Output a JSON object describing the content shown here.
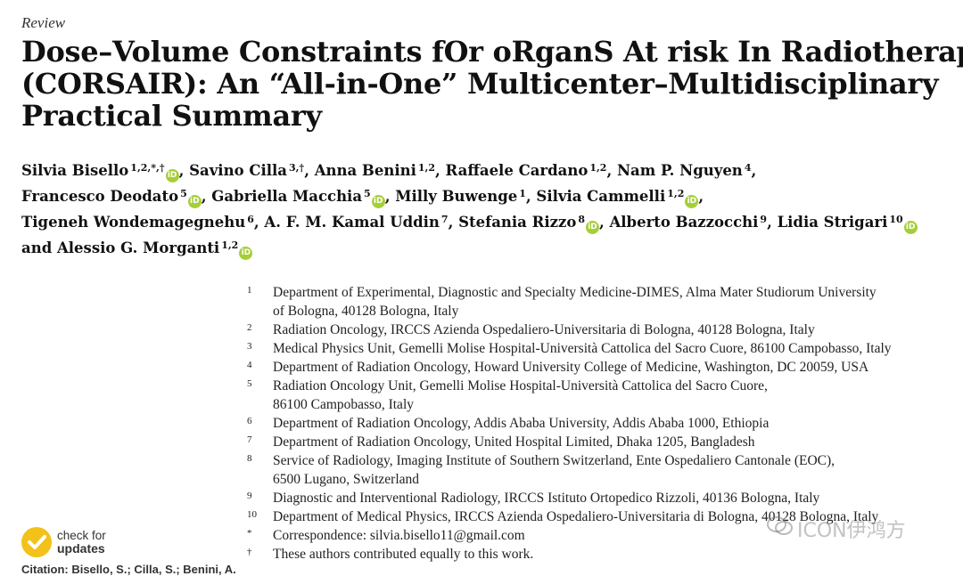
{
  "article_type": "Review",
  "title_lines": [
    "Dose–Volume Constraints fOr oRganS At risk In Radiotherapy",
    "(CORSAIR): An “All-in-One” Multicenter–Multidisciplinary",
    "Practical Summary"
  ],
  "authors": [
    [
      {
        "name": "Silvia Bisello",
        "sup": "1,2,*,†",
        "orcid": true,
        "sep": ", "
      },
      {
        "name": "Savino Cilla",
        "sup": "3,†",
        "orcid": false,
        "sep": ", "
      },
      {
        "name": "Anna Benini",
        "sup": "1,2",
        "orcid": false,
        "sep": ", "
      },
      {
        "name": "Raffaele Cardano",
        "sup": "1,2",
        "orcid": false,
        "sep": ", "
      },
      {
        "name": "Nam P. Nguyen",
        "sup": "4",
        "orcid": false,
        "sep": ","
      }
    ],
    [
      {
        "name": "Francesco Deodato",
        "sup": "5",
        "orcid": true,
        "sep": ", "
      },
      {
        "name": "Gabriella Macchia",
        "sup": "5",
        "orcid": true,
        "sep": ", "
      },
      {
        "name": "Milly Buwenge",
        "sup": "1",
        "orcid": false,
        "sep": ", "
      },
      {
        "name": "Silvia Cammelli",
        "sup": "1,2",
        "orcid": true,
        "sep": ","
      }
    ],
    [
      {
        "name": "Tigeneh Wondemagegnehu",
        "sup": "6",
        "orcid": false,
        "sep": ", "
      },
      {
        "name": "A. F. M. Kamal Uddin",
        "sup": "7",
        "orcid": false,
        "sep": ", "
      },
      {
        "name": "Stefania Rizzo",
        "sup": "8",
        "orcid": true,
        "sep": ", "
      },
      {
        "name": "Alberto Bazzocchi",
        "sup": "9",
        "orcid": false,
        "sep": ", "
      },
      {
        "name": "Lidia Strigari",
        "sup": "10",
        "orcid": true,
        "sep": ""
      }
    ],
    [
      {
        "name": "and Alessio G. Morganti",
        "sup": "1,2",
        "orcid": true,
        "sep": ""
      }
    ]
  ],
  "affiliations": [
    {
      "num": "1",
      "lines": [
        "Department of Experimental, Diagnostic and Specialty Medicine-DIMES, Alma Mater Studiorum University",
        "of Bologna, 40128 Bologna, Italy"
      ]
    },
    {
      "num": "2",
      "lines": [
        "Radiation Oncology, IRCCS Azienda Ospedaliero-Universitaria di Bologna, 40128 Bologna, Italy"
      ]
    },
    {
      "num": "3",
      "lines": [
        "Medical Physics Unit, Gemelli Molise Hospital-Università Cattolica del Sacro Cuore, 86100 Campobasso, Italy"
      ]
    },
    {
      "num": "4",
      "lines": [
        "Department of Radiation Oncology, Howard University College of Medicine, Washington, DC 20059, USA"
      ]
    },
    {
      "num": "5",
      "lines": [
        "Radiation Oncology Unit, Gemelli Molise Hospital-Università Cattolica del Sacro Cuore,",
        "86100 Campobasso, Italy"
      ]
    },
    {
      "num": "6",
      "lines": [
        "Department of Radiation Oncology, Addis Ababa University, Addis Ababa 1000, Ethiopia"
      ]
    },
    {
      "num": "7",
      "lines": [
        "Department of Radiation Oncology, United Hospital Limited, Dhaka 1205, Bangladesh"
      ]
    },
    {
      "num": "8",
      "lines": [
        "Service of Radiology, Imaging Institute of Southern Switzerland, Ente Ospedaliero Cantonale (EOC),",
        "6500 Lugano, Switzerland"
      ]
    },
    {
      "num": "9",
      "lines": [
        "Diagnostic and Interventional Radiology, IRCCS Istituto Ortopedico Rizzoli, 40136 Bologna, Italy"
      ]
    },
    {
      "num": "10",
      "lines": [
        "Department of Medical Physics, IRCCS Azienda Ospedaliero-Universitaria di Bologna, 40128 Bologna, Italy"
      ]
    },
    {
      "num": "*",
      "lines": [
        "Correspondence: silvia.bisello11@gmail.com"
      ]
    },
    {
      "num": "†",
      "lines": [
        "These authors contributed equally to this work."
      ]
    }
  ],
  "check_updates": {
    "line1": "check for",
    "line2": "updates"
  },
  "citation_label": "Citation: Bisello, S.; Cilla, S.; Benini, A.",
  "watermark": {
    "icon": "wechat-icon",
    "text": "ICON伊鸿方"
  },
  "colors": {
    "orcid": "#a6ce39",
    "check_badge": "#f2c21b"
  }
}
